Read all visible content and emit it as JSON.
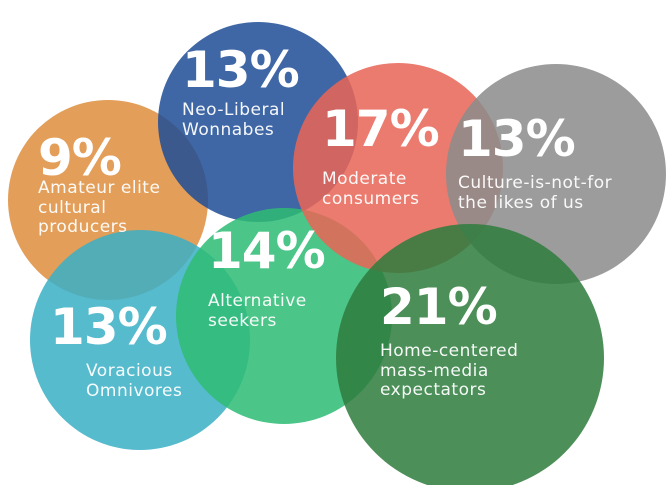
{
  "chart_data": {
    "type": "bubble",
    "title": "",
    "segments": [
      {
        "name": "Neo-Liberal Wonnabes",
        "lines": [
          "Neo-Liberal",
          "Wonnabes"
        ],
        "value": 13,
        "label": "13%",
        "color": "#1F4E96"
      },
      {
        "name": "Moderate consumers",
        "lines": [
          "Moderate",
          "consumers"
        ],
        "value": 17,
        "label": "17%",
        "color": "#E86556"
      },
      {
        "name": "Culture-is-not-for the likes of us",
        "lines": [
          "Culture-is-not-for",
          "the likes of us"
        ],
        "value": 13,
        "label": "13%",
        "color": "#8C8C8C"
      },
      {
        "name": "Amateur elite cultural producers",
        "lines": [
          "Amateur elite",
          "cultural",
          "producers"
        ],
        "value": 9,
        "label": "9%",
        "color": "#DE8E3E"
      },
      {
        "name": "Alternative seekers",
        "lines": [
          "Alternative",
          "seekers"
        ],
        "value": 14,
        "label": "14%",
        "color": "#2EBC74"
      },
      {
        "name": "Voracious Omnivores",
        "lines": [
          "Voracious",
          "Omnivores"
        ],
        "value": 13,
        "label": "13%",
        "color": "#3BB0C6"
      },
      {
        "name": "Home-centered mass-media expectators",
        "lines": [
          "Home-centered",
          "mass-media",
          "expectators"
        ],
        "value": 21,
        "label": "21%",
        "color": "#2E7D3E"
      }
    ]
  }
}
